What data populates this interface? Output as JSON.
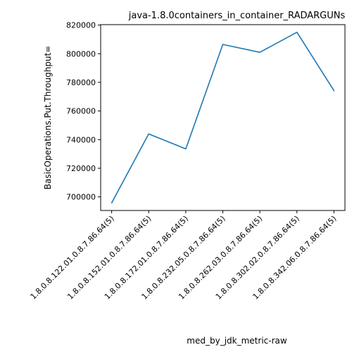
{
  "chart_data": {
    "type": "line",
    "title": "java-1.8.0containers_in_container_RADARGUNs",
    "xlabel": "med_by_jdk_metric-raw",
    "ylabel": "BasicOperations.Put.Throughput=",
    "categories": [
      "1.8.0.8.122.01.0.8.7.86.64(5)",
      "1.8.0.8.152.01.0.8.7.86.64(5)",
      "1.8.0.8.172.01.0.8.7.86.64(5)",
      "1.8.0.8.232.05.0.8.7.86.64(5)",
      "1.8.0.8.262.03.0.8.7.86.64(5)",
      "1.8.0.8.302.02.0.8.7.86.64(5)",
      "1.8.0.8.342.06.0.8.7.86.64(5)"
    ],
    "series": [
      {
        "values": [
          695800,
          744000,
          733500,
          806500,
          801000,
          815000,
          774200
        ]
      }
    ],
    "ylim": [
      690500,
      820300
    ],
    "yticks": [
      700000,
      720000,
      740000,
      760000,
      780000,
      800000,
      820000
    ],
    "ytick_labels": [
      "700000",
      "720000",
      "740000",
      "760000",
      "780000",
      "800000",
      "820000"
    ],
    "grid": false,
    "line_color": "#1f77b4"
  }
}
